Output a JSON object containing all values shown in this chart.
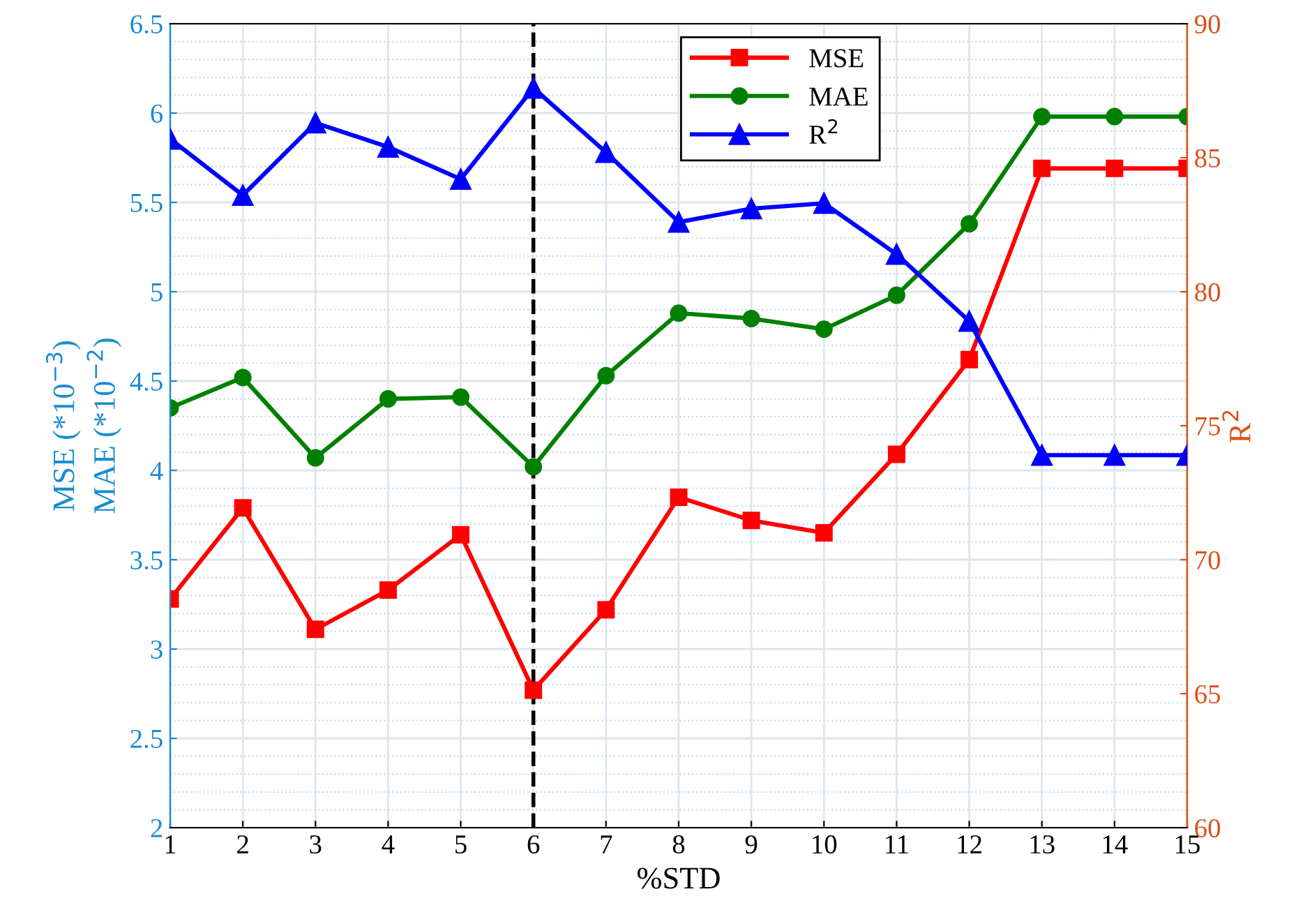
{
  "chart_data": {
    "type": "line",
    "xlabel": "%STD",
    "ylabel": "MSE (*10$^{−3}$)\nMAE (*10$^{−2}$)",
    "y2label": "R$^{2}$",
    "x": [
      1,
      2,
      3,
      4,
      5,
      6,
      7,
      8,
      9,
      10,
      11,
      12,
      13,
      14,
      15
    ],
    "series": [
      {
        "name": "MSE",
        "color": "#ff0000",
        "marker": "square",
        "values": [
          3.28,
          3.79,
          3.11,
          3.33,
          3.64,
          2.77,
          3.22,
          3.85,
          3.72,
          3.65,
          4.09,
          4.62,
          5.69,
          5.69,
          5.69
        ]
      },
      {
        "name": "MAE",
        "color": "#008000",
        "marker": "circle",
        "values": [
          4.35,
          4.52,
          4.07,
          4.4,
          4.41,
          4.02,
          4.53,
          4.88,
          4.85,
          4.79,
          4.98,
          5.38,
          5.98,
          5.98,
          5.98
        ]
      },
      {
        "name": "R$^{2}$",
        "color": "#0000ff",
        "marker": "triangle",
        "axis": "y2",
        "values": [
          85.7,
          83.6,
          86.3,
          85.4,
          84.2,
          87.6,
          85.2,
          82.6,
          83.1,
          83.3,
          81.4,
          78.9,
          73.9,
          73.9,
          73.9
        ]
      }
    ],
    "xlim": [
      1,
      15
    ],
    "xticks": [
      1,
      2,
      3,
      4,
      5,
      6,
      7,
      8,
      9,
      10,
      11,
      12,
      13,
      14,
      15
    ],
    "ylim": [
      2,
      6.5
    ],
    "yticks": [
      2,
      2.5,
      3,
      3.5,
      4,
      4.5,
      5,
      5.5,
      6,
      6.5
    ],
    "y2lim": [
      60,
      90
    ],
    "y2ticks": [
      60,
      65,
      70,
      75,
      80,
      85,
      90
    ],
    "ref_lines": [
      {
        "axis": "x",
        "value": 6,
        "color": "#000000",
        "line_style": "dashed"
      }
    ],
    "grid": true,
    "legend": "top",
    "line_style": "solid"
  }
}
